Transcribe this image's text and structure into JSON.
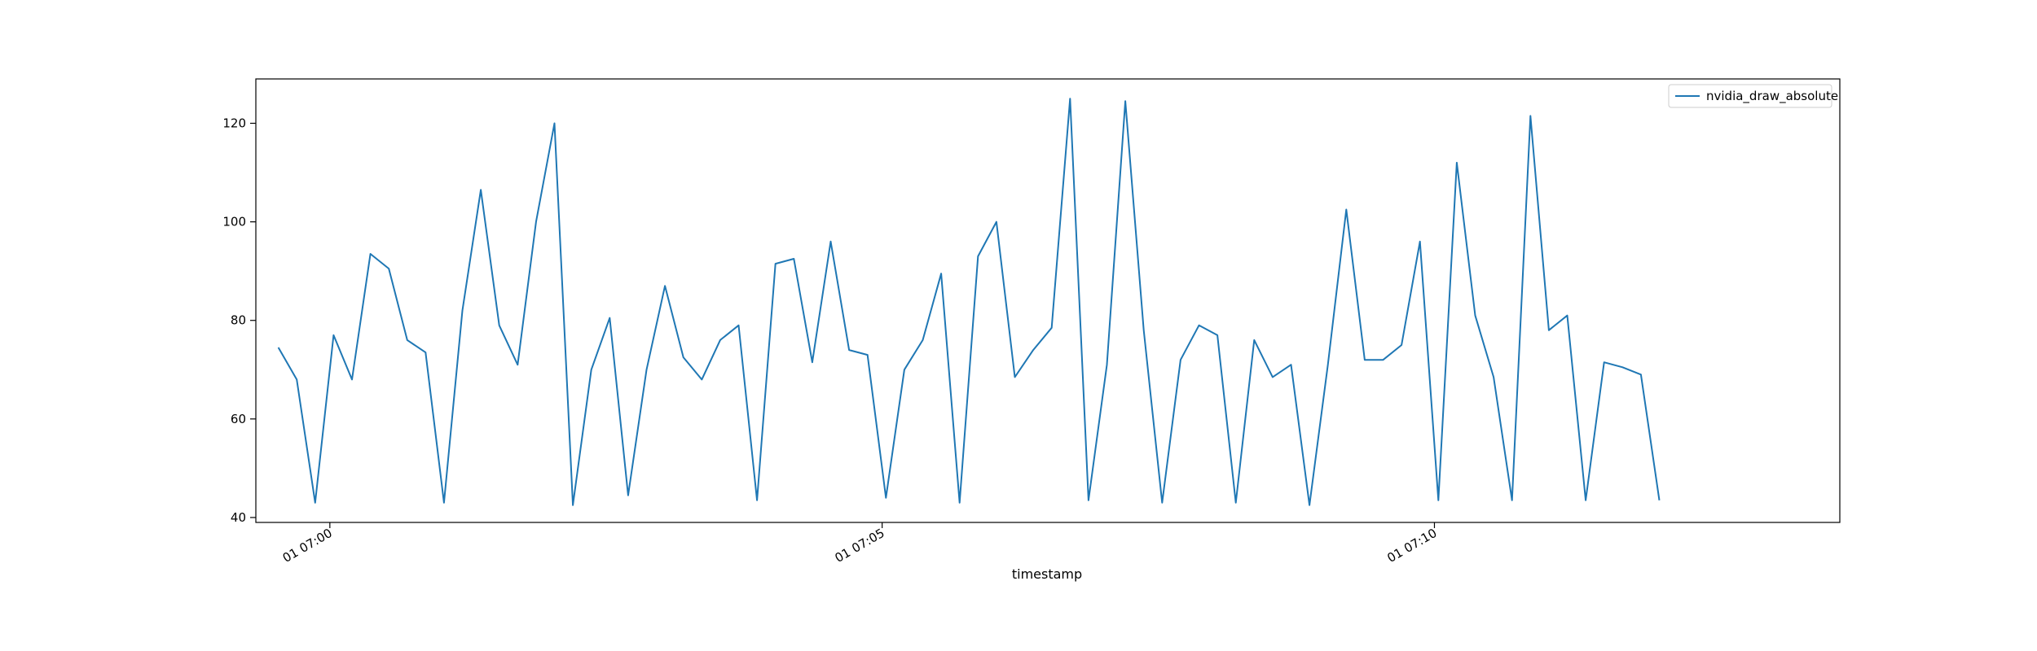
{
  "chart_data": {
    "type": "line",
    "title": "",
    "xlabel": "timestamp",
    "ylabel": "",
    "x_range_minutes": [
      -0.67,
      13.67
    ],
    "ylim": [
      39,
      129
    ],
    "yticks": [
      40,
      60,
      80,
      100,
      120
    ],
    "xticks": [
      {
        "label": "01 07:00",
        "minute": 0
      },
      {
        "label": "01 07:05",
        "minute": 5
      },
      {
        "label": "01 07:10",
        "minute": 10
      }
    ],
    "grid": false,
    "legend": "upper-right",
    "series": [
      {
        "name": "nvidia_draw_absolute",
        "color": "#1f77b4",
        "x_start_minute": -0.4667,
        "x_step_minute": 0.1667,
        "values": [
          74.5,
          68,
          43,
          77,
          68,
          93.5,
          90.5,
          76,
          73.5,
          43,
          82,
          106.5,
          79,
          71,
          100,
          120,
          42.5,
          70,
          80.5,
          44.5,
          70,
          87,
          72.5,
          68,
          76,
          79,
          43.5,
          91.5,
          92.5,
          71.5,
          96,
          74,
          73,
          44,
          70,
          76,
          89.5,
          43,
          93,
          100,
          68.5,
          74,
          78.5,
          125,
          43.5,
          71,
          124.5,
          78,
          43,
          72,
          79,
          77,
          43,
          76,
          68.5,
          71,
          42.5,
          71,
          102.5,
          72,
          72,
          75,
          96,
          43.5,
          112,
          81,
          68.5,
          43.5,
          121.5,
          78,
          81,
          43.5,
          71.5,
          70.5,
          69,
          43.5
        ]
      }
    ]
  }
}
